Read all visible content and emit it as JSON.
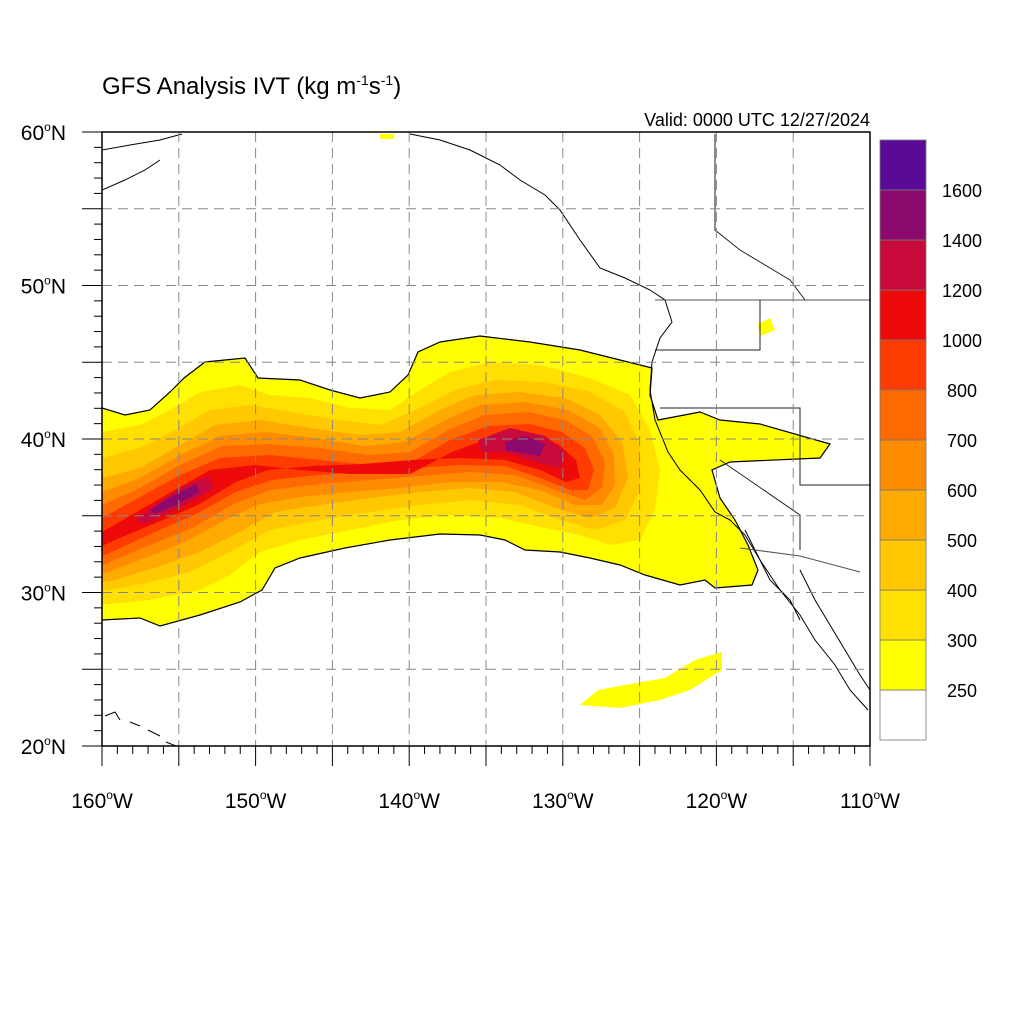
{
  "title": {
    "main": "GFS Analysis IVT (kg m",
    "exp1": "-1",
    "mid": "s",
    "exp2": "-1",
    "end": ")"
  },
  "valid": "Valid: 0000 UTC 12/27/2024",
  "map": {
    "lon_range": [
      -160,
      -110
    ],
    "lat_range": [
      20,
      60
    ],
    "grid": "dashed gray every 5 degrees",
    "lat_labels": [
      {
        "deg": "60",
        "hemi": "N",
        "lat": 60
      },
      {
        "deg": "50",
        "hemi": "N",
        "lat": 50
      },
      {
        "deg": "40",
        "hemi": "N",
        "lat": 40
      },
      {
        "deg": "30",
        "hemi": "N",
        "lat": 30
      },
      {
        "deg": "20",
        "hemi": "N",
        "lat": 20
      }
    ],
    "lon_labels": [
      {
        "deg": "160",
        "hemi": "W",
        "lon": -160
      },
      {
        "deg": "150",
        "hemi": "W",
        "lon": -150
      },
      {
        "deg": "140",
        "hemi": "W",
        "lon": -140
      },
      {
        "deg": "130",
        "hemi": "W",
        "lon": -130
      },
      {
        "deg": "120",
        "hemi": "W",
        "lon": -120
      },
      {
        "deg": "110",
        "hemi": "W",
        "lon": -110
      }
    ]
  },
  "colorbar": {
    "levels": [
      {
        "label": "",
        "color": "#ffffff"
      },
      {
        "label": "250",
        "color": "#ffff00"
      },
      {
        "label": "300",
        "color": "#ffe000"
      },
      {
        "label": "400",
        "color": "#ffc800"
      },
      {
        "label": "500",
        "color": "#ffaa00"
      },
      {
        "label": "600",
        "color": "#ff8c00"
      },
      {
        "label": "700",
        "color": "#ff6a00"
      },
      {
        "label": "800",
        "color": "#ff3c00"
      },
      {
        "label": "1000",
        "color": "#ee0a0a"
      },
      {
        "label": "1200",
        "color": "#c80a3c"
      },
      {
        "label": "1400",
        "color": "#8c0a6e"
      },
      {
        "label": "1600",
        "color": "#5a0a96"
      }
    ]
  },
  "colors": {
    "land_outline": "#000000",
    "grid": "#888888"
  }
}
